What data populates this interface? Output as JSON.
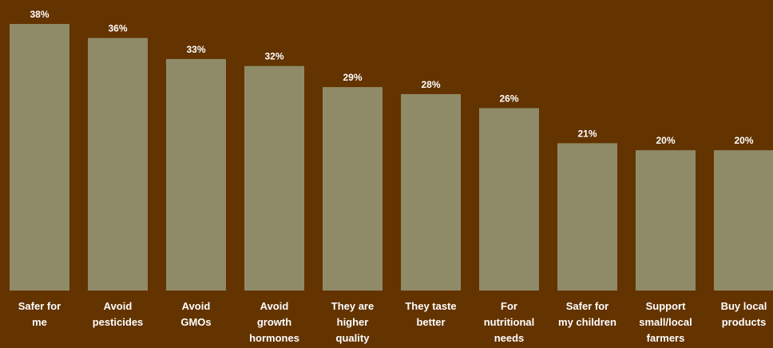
{
  "chart_data": {
    "type": "bar",
    "title": "",
    "xlabel": "",
    "ylabel": "",
    "ylim": [
      0,
      38
    ],
    "grid": false,
    "categories": [
      [
        "Safer for",
        "me"
      ],
      [
        "Avoid",
        "pesticides"
      ],
      [
        "Avoid",
        "GMOs"
      ],
      [
        "Avoid",
        "growth",
        "hormones"
      ],
      [
        "They are",
        "higher",
        "quality"
      ],
      [
        "They taste",
        "better"
      ],
      [
        "For",
        "nutritional",
        "needs"
      ],
      [
        "Safer for",
        "my children"
      ],
      [
        "Support",
        "small/local",
        "farmers"
      ],
      [
        "Buy local",
        "products"
      ]
    ],
    "values": [
      38,
      36,
      33,
      32,
      29,
      28,
      26,
      21,
      20,
      20
    ],
    "value_labels": [
      "38%",
      "36%",
      "33%",
      "32%",
      "29%",
      "28%",
      "26%",
      "21%",
      "20%",
      "20%"
    ],
    "colors": {
      "background": "#633300",
      "bar": "#8f8b69",
      "text": "#ffffff"
    }
  }
}
